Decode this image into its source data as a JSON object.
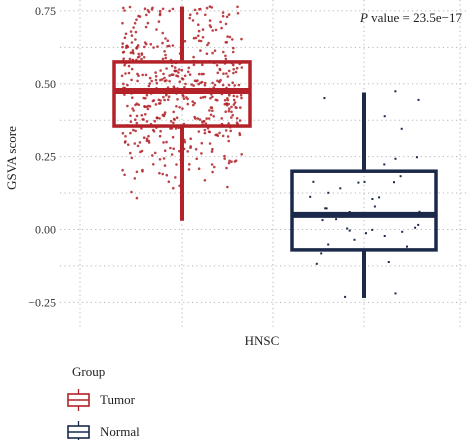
{
  "chart_data": {
    "type": "boxplot",
    "title": "",
    "xlabel": "HNSC",
    "ylabel": "GSVA score",
    "ylim": [
      -0.29,
      0.76
    ],
    "yticks": [
      0.75,
      0.5,
      0.25,
      0.0,
      -0.25
    ],
    "ytick_labels": [
      "0.75",
      "0.50",
      "0.25",
      "0.00",
      "−0.25"
    ],
    "grid": true,
    "annotation": {
      "italic": "P",
      "rest": " value = 23.5e−17"
    },
    "legend": {
      "title": "Group",
      "placement": "bottom"
    },
    "series": [
      {
        "name": "Tumor",
        "color": "#b22228",
        "whisker_low": 0.03,
        "q1": 0.355,
        "median": 0.475,
        "q3": 0.575,
        "whisker_high": 0.765,
        "points_range": [
          -0.03,
          0.765
        ],
        "point_count": 520
      },
      {
        "name": "Normal",
        "color": "#1b2a4a",
        "whisker_low": -0.235,
        "q1": -0.07,
        "median": 0.05,
        "q3": 0.2,
        "whisker_high": 0.47,
        "points_range": [
          -0.235,
          0.48
        ],
        "point_count": 44
      }
    ]
  }
}
